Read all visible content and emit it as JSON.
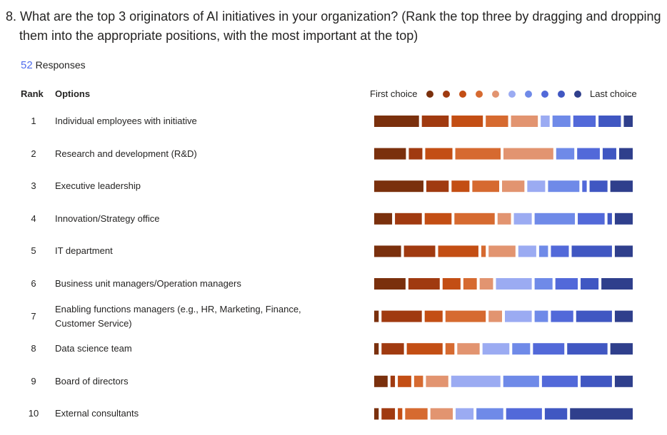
{
  "chart_data": {
    "type": "ranking_bar",
    "title": "8. What are the top 3 originators of AI initiatives in your organization? (Rank the top three by dragging and dropping them into the appropriate positions, with the most important at the top)",
    "responses": 52,
    "responses_label": "Responses",
    "rank_header": "Rank",
    "options_header": "Options",
    "legend_first": "First choice",
    "legend_last": "Last choice",
    "ranks": [
      1,
      2,
      3,
      4,
      5,
      6,
      7,
      8,
      9,
      10
    ],
    "categories": [
      "Individual employees with initiative",
      "Research and development (R&D)",
      "Executive leadership",
      "Innovation/Strategy office",
      "IT department",
      "Business unit managers/Operation managers",
      "Enabling functions managers (e.g., HR, Marketing, Finance, Customer Service)",
      "Data science team",
      "Board of directors",
      "External consultants"
    ],
    "series": [
      {
        "color": "#7a300d",
        "values": [
          10,
          7,
          11,
          4,
          6,
          7,
          1,
          1,
          3,
          1
        ]
      },
      {
        "color": "#a03a10",
        "values": [
          6,
          3,
          5,
          6,
          7,
          7,
          9,
          5,
          1,
          3
        ]
      },
      {
        "color": "#c34e14",
        "values": [
          7,
          6,
          4,
          6,
          9,
          4,
          4,
          8,
          3,
          1
        ]
      },
      {
        "color": "#d66a30",
        "values": [
          5,
          10,
          6,
          9,
          1,
          3,
          9,
          2,
          2,
          5
        ]
      },
      {
        "color": "#e29470",
        "values": [
          6,
          11,
          5,
          3,
          6,
          3,
          3,
          5,
          5,
          5
        ]
      },
      {
        "color": "#9babf2",
        "values": [
          2,
          0,
          4,
          4,
          4,
          8,
          6,
          6,
          11,
          4
        ]
      },
      {
        "color": "#6f8ae8",
        "values": [
          4,
          4,
          7,
          9,
          2,
          4,
          3,
          4,
          8,
          6
        ]
      },
      {
        "color": "#5269d9",
        "values": [
          5,
          5,
          1,
          6,
          4,
          5,
          5,
          7,
          8,
          8
        ]
      },
      {
        "color": "#4057c2",
        "values": [
          5,
          3,
          4,
          1,
          9,
          4,
          8,
          9,
          7,
          5
        ]
      },
      {
        "color": "#2f3f8c",
        "values": [
          2,
          3,
          5,
          4,
          4,
          7,
          4,
          5,
          4,
          14
        ]
      }
    ]
  }
}
